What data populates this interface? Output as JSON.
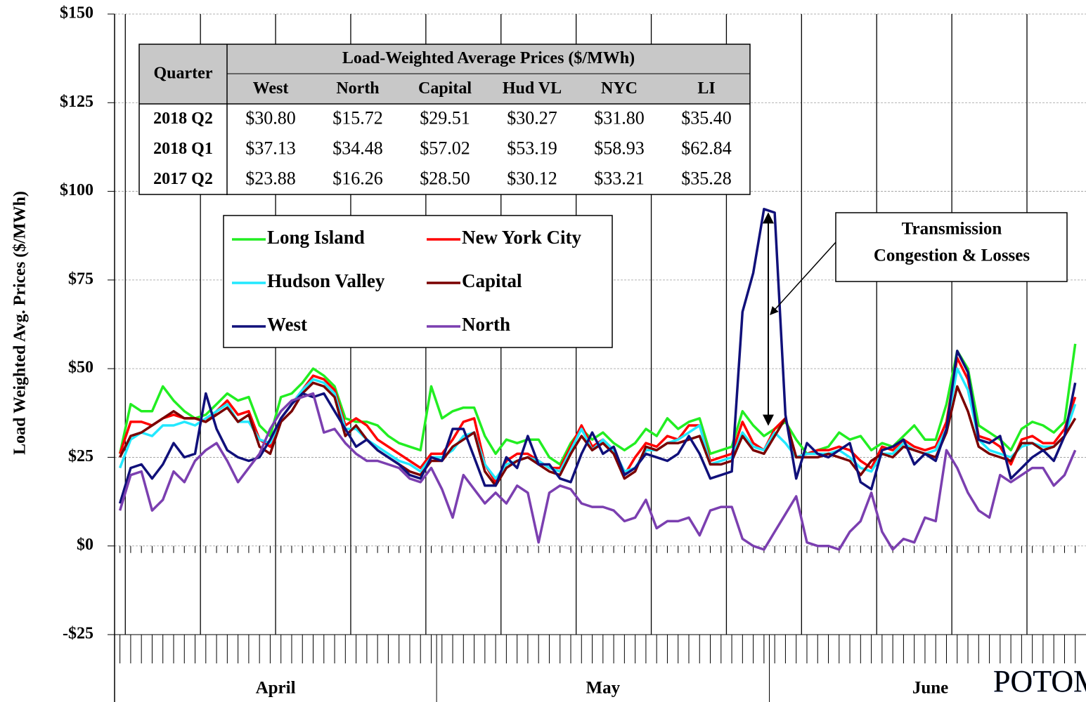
{
  "chart_data": {
    "type": "line",
    "y_label": "Load Weighted Avg. Prices  ($/MWh)",
    "ylim": [
      -25,
      150
    ],
    "yticks": [
      {
        "value": -25,
        "label": "-$25"
      },
      {
        "value": 0,
        "label": "$0"
      },
      {
        "value": 25,
        "label": "$25"
      },
      {
        "value": 50,
        "label": "$50"
      },
      {
        "value": 75,
        "label": "$75"
      },
      {
        "value": 100,
        "label": "$100"
      },
      {
        "value": 125,
        "label": "$125"
      },
      {
        "value": 150,
        "label": "$150"
      }
    ],
    "grid": true,
    "xlim": [
      0,
      90.5
    ],
    "months": [
      {
        "label": "April",
        "start": 0,
        "end": 30
      },
      {
        "label": "May",
        "start": 30,
        "end": 61
      },
      {
        "label": "June",
        "start": 61,
        "end": 91
      }
    ],
    "week_lines": [
      1,
      8,
      15,
      22,
      29,
      36,
      43,
      50,
      57,
      64,
      71,
      78,
      85
    ],
    "x": [
      0.5,
      1.5,
      2.5,
      3.5,
      4.5,
      5.5,
      6.5,
      7.5,
      8.5,
      9.5,
      10.5,
      11.5,
      12.5,
      13.5,
      14.5,
      15.5,
      16.5,
      17.5,
      18.5,
      19.5,
      20.5,
      21.5,
      22.5,
      23.5,
      24.5,
      25.5,
      26.5,
      27.5,
      28.5,
      29.5,
      30.5,
      31.5,
      32.5,
      33.5,
      34.5,
      35.5,
      36.5,
      37.5,
      38.5,
      39.5,
      40.5,
      41.5,
      42.5,
      43.5,
      44.5,
      45.5,
      46.5,
      47.5,
      48.5,
      49.5,
      50.5,
      51.5,
      52.5,
      53.5,
      54.5,
      55.5,
      56.5,
      57.5,
      58.5,
      59.5,
      60.5,
      61.5,
      62.5,
      63.5,
      64.5,
      65.5,
      66.5,
      67.5,
      68.5,
      69.5,
      70.5,
      71.5,
      72.5,
      73.5,
      74.5,
      75.5,
      76.5,
      77.5,
      78.5,
      79.5,
      80.5,
      81.5,
      82.5,
      83.5,
      84.5,
      85.5,
      86.5,
      87.5,
      88.5,
      89.5
    ],
    "series": [
      {
        "name": "Long Island",
        "color": "#22ee22",
        "values": [
          26,
          40,
          38,
          38,
          45,
          41,
          38,
          36,
          37,
          40,
          43,
          41,
          42,
          34,
          31,
          42,
          43,
          46,
          50,
          48,
          45,
          36,
          35,
          35,
          34,
          31,
          29,
          28,
          27,
          45,
          36,
          38,
          39,
          39,
          31,
          26,
          30,
          29,
          30,
          30,
          25,
          23,
          29,
          33,
          30,
          32,
          29,
          27,
          29,
          33,
          31,
          36,
          33,
          35,
          36,
          26,
          27,
          28,
          38,
          34,
          31,
          33,
          35,
          30,
          26,
          27,
          28,
          32,
          30,
          31,
          27,
          29,
          28,
          31,
          34,
          30,
          30,
          40,
          55,
          50,
          34,
          32,
          30,
          27,
          33,
          35,
          34,
          32,
          35,
          57
        ]
      },
      {
        "name": "New York City",
        "color": "#ff0000",
        "values": [
          26,
          35,
          35,
          34,
          36,
          37,
          36,
          36,
          35,
          38,
          41,
          37,
          38,
          30,
          28,
          36,
          40,
          44,
          48,
          47,
          44,
          34,
          36,
          34,
          30,
          28,
          26,
          24,
          22,
          26,
          26,
          30,
          35,
          36,
          23,
          18,
          24,
          26,
          26,
          24,
          22,
          22,
          28,
          34,
          28,
          30,
          27,
          20,
          25,
          29,
          28,
          31,
          30,
          34,
          34,
          24,
          25,
          26,
          35,
          29,
          27,
          33,
          36,
          25,
          26,
          27,
          27,
          28,
          27,
          24,
          22,
          28,
          27,
          30,
          28,
          27,
          28,
          35,
          53,
          47,
          31,
          30,
          28,
          23,
          30,
          31,
          29,
          29,
          33,
          42
        ]
      },
      {
        "name": "Hudson Valley",
        "color": "#22e8ff",
        "values": [
          22,
          30,
          32,
          31,
          34,
          34,
          35,
          34,
          36,
          38,
          40,
          35,
          35,
          30,
          29,
          36,
          40,
          44,
          47,
          46,
          43,
          33,
          33,
          30,
          28,
          26,
          24,
          23,
          21,
          25,
          25,
          27,
          31,
          32,
          23,
          19,
          23,
          24,
          25,
          24,
          22,
          21,
          27,
          33,
          27,
          30,
          27,
          21,
          22,
          27,
          27,
          29,
          30,
          32,
          34,
          23,
          24,
          25,
          32,
          28,
          27,
          32,
          29,
          25,
          26,
          26,
          26,
          27,
          25,
          22,
          21,
          26,
          26,
          29,
          27,
          26,
          27,
          33,
          50,
          44,
          30,
          27,
          26,
          25,
          28,
          29,
          28,
          28,
          31,
          40
        ]
      },
      {
        "name": "Capital",
        "color": "#7a0000",
        "values": [
          25,
          31,
          32,
          34,
          36,
          38,
          36,
          36,
          35,
          37,
          39,
          35,
          37,
          28,
          26,
          35,
          38,
          43,
          46,
          45,
          42,
          31,
          34,
          30,
          27,
          25,
          23,
          21,
          20,
          24,
          24,
          28,
          30,
          32,
          21,
          17,
          22,
          24,
          25,
          23,
          21,
          20,
          26,
          31,
          27,
          29,
          26,
          19,
          21,
          28,
          27,
          29,
          29,
          30,
          31,
          23,
          23,
          24,
          31,
          27,
          26,
          31,
          36,
          25,
          25,
          25,
          26,
          25,
          24,
          20,
          24,
          26,
          25,
          28,
          27,
          26,
          25,
          32,
          45,
          38,
          28,
          26,
          25,
          24,
          29,
          29,
          27,
          28,
          31,
          36
        ]
      },
      {
        "name": "West",
        "color": "#10107a",
        "values": [
          12,
          22,
          23,
          19,
          23,
          29,
          25,
          26,
          43,
          33,
          27,
          25,
          24,
          25,
          30,
          36,
          40,
          43,
          42,
          43,
          38,
          33,
          28,
          30,
          27,
          25,
          23,
          20,
          19,
          25,
          24,
          33,
          33,
          25,
          17,
          17,
          25,
          22,
          31,
          23,
          23,
          19,
          18,
          26,
          32,
          26,
          28,
          20,
          22,
          26,
          25,
          24,
          26,
          31,
          26,
          19,
          20,
          21,
          66,
          77,
          95,
          94,
          37,
          19,
          29,
          26,
          25,
          27,
          29,
          18,
          16,
          27,
          28,
          30,
          23,
          26,
          24,
          33,
          55,
          49,
          30,
          29,
          31,
          19,
          22,
          25,
          27,
          24,
          31,
          46
        ]
      },
      {
        "name": "North",
        "color": "#7b3fb0",
        "values": [
          10,
          20,
          21,
          10,
          13,
          21,
          18,
          24,
          27,
          29,
          24,
          18,
          22,
          26,
          33,
          38,
          41,
          42,
          43,
          32,
          33,
          29,
          26,
          24,
          24,
          23,
          22,
          19,
          18,
          22,
          16,
          8,
          20,
          16,
          12,
          15,
          12,
          17,
          15,
          1,
          15,
          17,
          16,
          12,
          11,
          11,
          10,
          7,
          8,
          13,
          5,
          7,
          7,
          8,
          3,
          10,
          11,
          11,
          2,
          0,
          -1,
          4,
          9,
          14,
          1,
          0,
          0,
          -1,
          4,
          7,
          15,
          4,
          -1,
          2,
          1,
          8,
          7,
          27,
          22,
          15,
          10,
          8,
          20,
          18,
          20,
          22,
          22,
          17,
          20,
          27
        ]
      }
    ]
  },
  "table": {
    "corner": "Quarter",
    "group_header": "Load-Weighted Average Prices ($/MWh)",
    "columns": [
      "West",
      "North",
      "Capital",
      "Hud VL",
      "NYC",
      "LI"
    ],
    "rows": [
      [
        "2018 Q2",
        "$30.80",
        "$15.72",
        "$29.51",
        "$30.27",
        "$31.80",
        "$35.40"
      ],
      [
        "2018 Q1",
        "$37.13",
        "$34.48",
        "$57.02",
        "$53.19",
        "$58.93",
        "$62.84"
      ],
      [
        "2017 Q2",
        "$23.88",
        "$16.26",
        "$28.50",
        "$30.12",
        "$33.21",
        "$35.28"
      ]
    ]
  },
  "annotation": [
    "Transmission",
    "Congestion & Losses"
  ],
  "logo": "POTOMAC"
}
